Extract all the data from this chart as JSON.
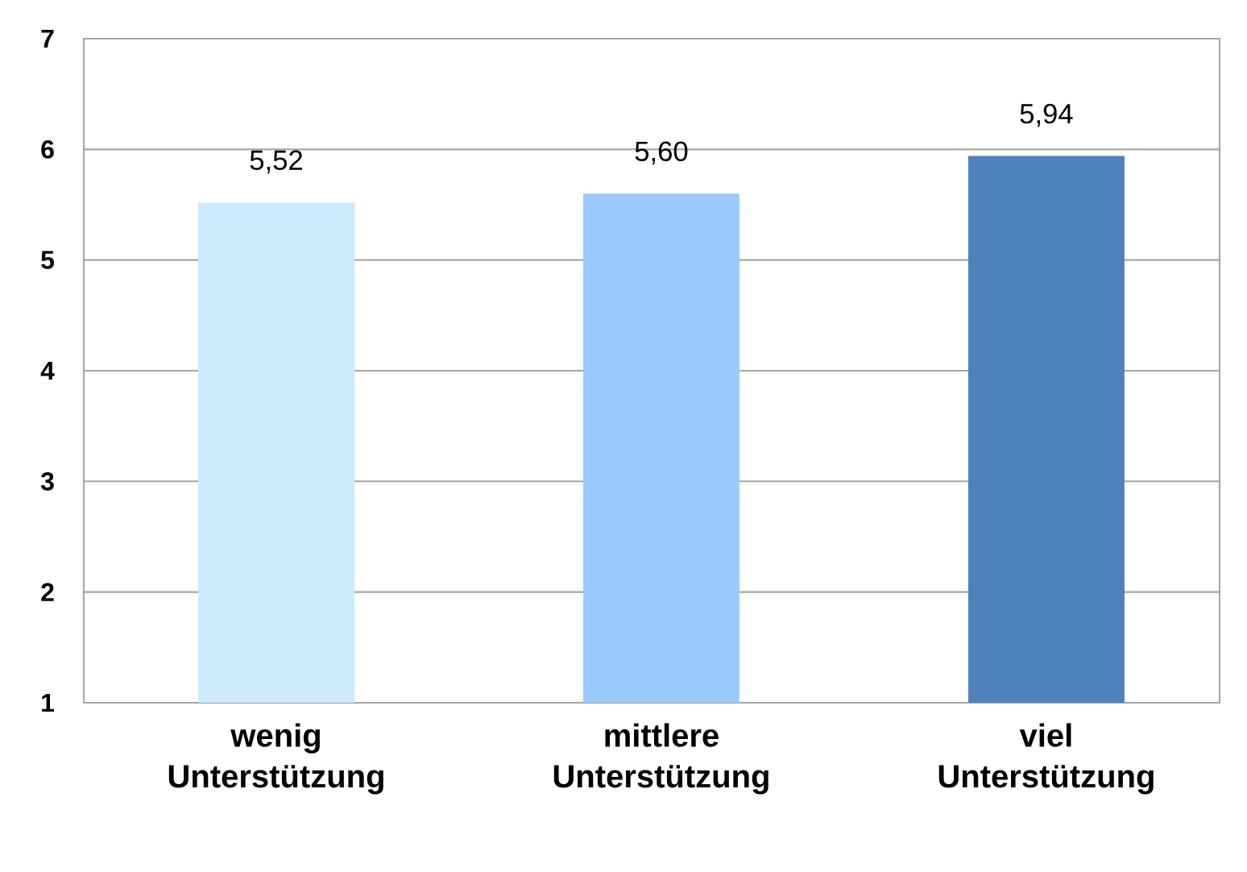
{
  "chart_data": {
    "type": "bar",
    "categories": [
      "wenig Unterstützung",
      "mittlere Unterstützung",
      "viel Unterstützung"
    ],
    "values": [
      5.52,
      5.6,
      5.94
    ],
    "colors": [
      "#cce9fd",
      "#99cbfd",
      "#4f81bd"
    ],
    "value_labels": [
      "5,52",
      "5,60",
      "5,94"
    ],
    "ylim": [
      1,
      7
    ],
    "yticks": [
      1,
      2,
      3,
      4,
      5,
      6,
      7
    ],
    "grid": "y"
  }
}
